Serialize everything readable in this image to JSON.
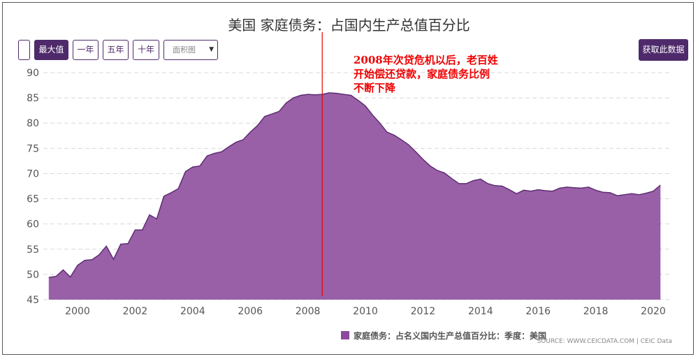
{
  "toolbar": {
    "blank_label": "",
    "max_label": "最大值",
    "one_year_label": "一年",
    "five_year_label": "五年",
    "ten_year_label": "十年",
    "chart_type_value": "面积图",
    "caret": "▼",
    "get_data_label": "获取此数据"
  },
  "annotation": {
    "lines": [
      "2008年次贷危机以后，老百姓",
      "开始偿还贷款，家庭债务比例",
      "不断下降"
    ]
  },
  "legend": {
    "label": "家庭债务：占名义国内生产总值百分比：季度：美国"
  },
  "source": "SOURCE: WWW.CEICDATA.COM | CEIC Data",
  "colors": {
    "area": "#8b4a9c",
    "line": "#5e2d72",
    "marker_line": "#e60000",
    "button": "#4e2a6b"
  },
  "chart_data": {
    "type": "area",
    "title": "美国 家庭债务：占国内生产总值百分比",
    "xlabel": "",
    "ylabel": "",
    "ylim": [
      45,
      90
    ],
    "xlim": [
      1999.0,
      2020.5
    ],
    "y_ticks": [
      45,
      50,
      55,
      60,
      65,
      70,
      75,
      80,
      85,
      90
    ],
    "x_ticks": [
      2000,
      2002,
      2004,
      2006,
      2008,
      2010,
      2012,
      2014,
      2016,
      2018,
      2020
    ],
    "grid": "horizontal-dashed",
    "legend_position": "bottom",
    "vertical_marker_x": 2008.5,
    "series": [
      {
        "name": "家庭债务：占名义国内生产总值百分比：季度：美国",
        "points": [
          [
            1999.0,
            49.4
          ],
          [
            1999.25,
            49.6
          ],
          [
            1999.5,
            50.9
          ],
          [
            1999.75,
            49.5
          ],
          [
            2000.0,
            51.8
          ],
          [
            2000.25,
            52.8
          ],
          [
            2000.5,
            52.9
          ],
          [
            2000.75,
            53.9
          ],
          [
            2001.0,
            55.6
          ],
          [
            2001.25,
            53.0
          ],
          [
            2001.5,
            56.0
          ],
          [
            2001.75,
            56.1
          ],
          [
            2002.0,
            58.8
          ],
          [
            2002.25,
            58.8
          ],
          [
            2002.5,
            61.8
          ],
          [
            2002.75,
            61.0
          ],
          [
            2003.0,
            65.5
          ],
          [
            2003.25,
            66.2
          ],
          [
            2003.5,
            67.0
          ],
          [
            2003.75,
            70.4
          ],
          [
            2004.0,
            71.3
          ],
          [
            2004.25,
            71.5
          ],
          [
            2004.5,
            73.5
          ],
          [
            2004.75,
            74.0
          ],
          [
            2005.0,
            74.3
          ],
          [
            2005.25,
            75.3
          ],
          [
            2005.5,
            76.2
          ],
          [
            2005.75,
            76.7
          ],
          [
            2006.0,
            78.2
          ],
          [
            2006.25,
            79.5
          ],
          [
            2006.5,
            81.3
          ],
          [
            2006.75,
            81.8
          ],
          [
            2007.0,
            82.3
          ],
          [
            2007.25,
            84.0
          ],
          [
            2007.5,
            85.0
          ],
          [
            2007.75,
            85.5
          ],
          [
            2008.0,
            85.7
          ],
          [
            2008.25,
            85.6
          ],
          [
            2008.5,
            85.7
          ],
          [
            2008.75,
            86.0
          ],
          [
            2009.0,
            85.9
          ],
          [
            2009.25,
            85.7
          ],
          [
            2009.5,
            85.5
          ],
          [
            2009.75,
            84.5
          ],
          [
            2010.0,
            83.4
          ],
          [
            2010.25,
            81.6
          ],
          [
            2010.5,
            80.0
          ],
          [
            2010.75,
            78.2
          ],
          [
            2011.0,
            77.6
          ],
          [
            2011.25,
            76.7
          ],
          [
            2011.5,
            75.7
          ],
          [
            2011.75,
            74.3
          ],
          [
            2012.0,
            72.8
          ],
          [
            2012.25,
            71.5
          ],
          [
            2012.5,
            70.6
          ],
          [
            2012.75,
            70.1
          ],
          [
            2013.0,
            69.0
          ],
          [
            2013.25,
            68.0
          ],
          [
            2013.5,
            68.0
          ],
          [
            2013.75,
            68.6
          ],
          [
            2014.0,
            68.9
          ],
          [
            2014.25,
            68.0
          ],
          [
            2014.5,
            67.6
          ],
          [
            2014.75,
            67.5
          ],
          [
            2015.0,
            66.8
          ],
          [
            2015.25,
            66.0
          ],
          [
            2015.5,
            66.7
          ],
          [
            2015.75,
            66.5
          ],
          [
            2016.0,
            66.8
          ],
          [
            2016.25,
            66.6
          ],
          [
            2016.5,
            66.5
          ],
          [
            2016.75,
            67.1
          ],
          [
            2017.0,
            67.3
          ],
          [
            2017.25,
            67.2
          ],
          [
            2017.5,
            67.1
          ],
          [
            2017.75,
            67.3
          ],
          [
            2018.0,
            66.7
          ],
          [
            2018.25,
            66.3
          ],
          [
            2018.5,
            66.2
          ],
          [
            2018.75,
            65.6
          ],
          [
            2019.0,
            65.8
          ],
          [
            2019.25,
            66.0
          ],
          [
            2019.5,
            65.8
          ],
          [
            2019.75,
            66.1
          ],
          [
            2020.0,
            66.5
          ],
          [
            2020.25,
            67.7
          ]
        ]
      }
    ]
  }
}
